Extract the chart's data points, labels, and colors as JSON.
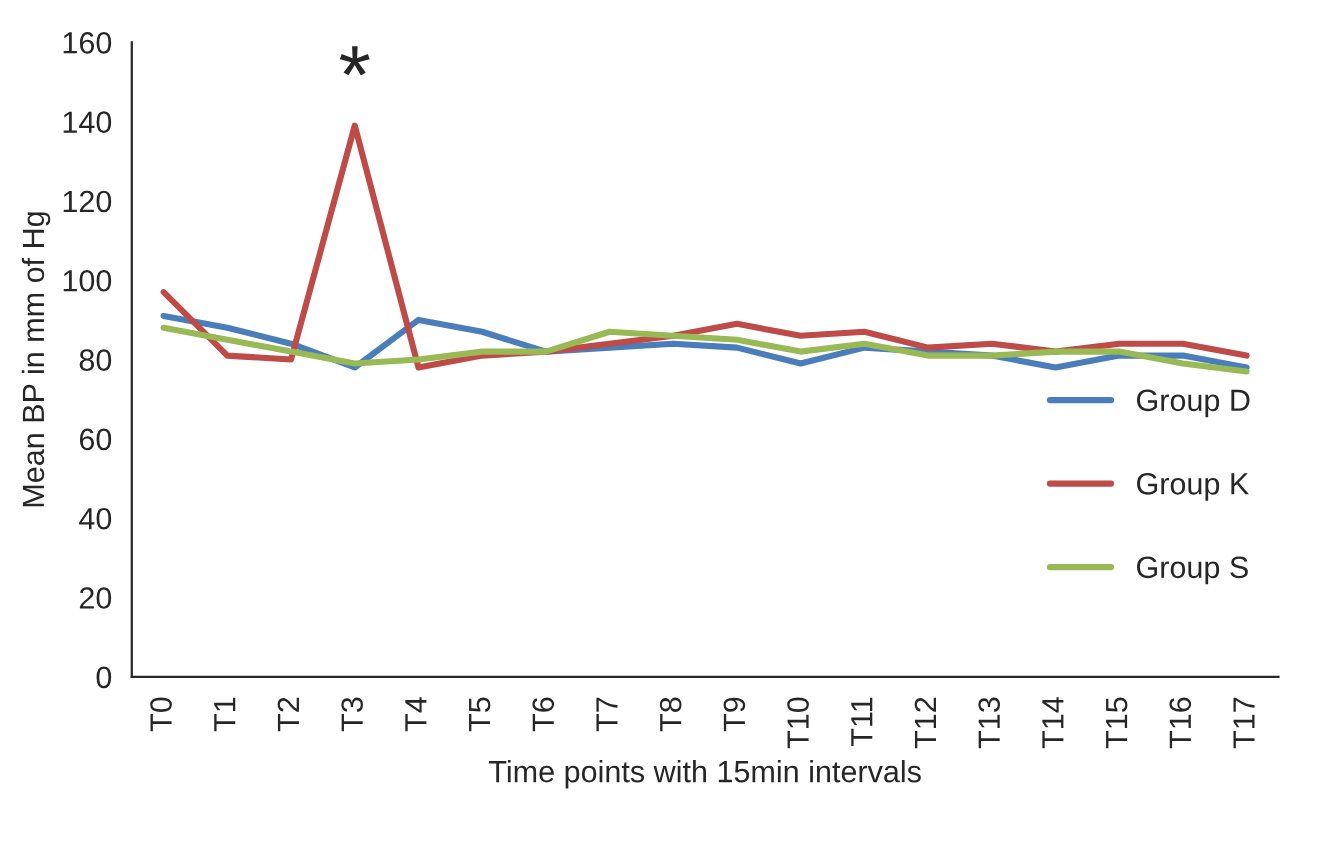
{
  "chart_data": {
    "type": "line",
    "xlabel": "Time points with 15min intervals",
    "ylabel": "Mean BP in mm of Hg",
    "categories": [
      "T0",
      "T1",
      "T2",
      "T3",
      "T4",
      "T5",
      "T6",
      "T7",
      "T8",
      "T9",
      "T10",
      "T11",
      "T12",
      "T13",
      "T14",
      "T15",
      "T16",
      "T17"
    ],
    "series": [
      {
        "name": "Group D",
        "color": "#4a7ebb",
        "values": [
          91,
          88,
          84,
          78,
          90,
          87,
          82,
          83,
          84,
          83,
          79,
          83,
          82,
          81,
          78,
          81,
          81,
          78
        ]
      },
      {
        "name": "Group K",
        "color": "#be4b48",
        "values": [
          97,
          81,
          80,
          139,
          78,
          81,
          82,
          84,
          86,
          89,
          86,
          87,
          83,
          84,
          82,
          84,
          84,
          81
        ]
      },
      {
        "name": "Group S",
        "color": "#98b954",
        "values": [
          88,
          85,
          82,
          79,
          80,
          82,
          82,
          87,
          86,
          85,
          82,
          84,
          81,
          81,
          82,
          82,
          79,
          77
        ]
      }
    ],
    "ylim": [
      0,
      160
    ],
    "yticks": [
      0,
      20,
      40,
      60,
      80,
      100,
      120,
      140,
      160
    ],
    "grid": false,
    "legend": "right",
    "annotations": [
      "*"
    ]
  }
}
